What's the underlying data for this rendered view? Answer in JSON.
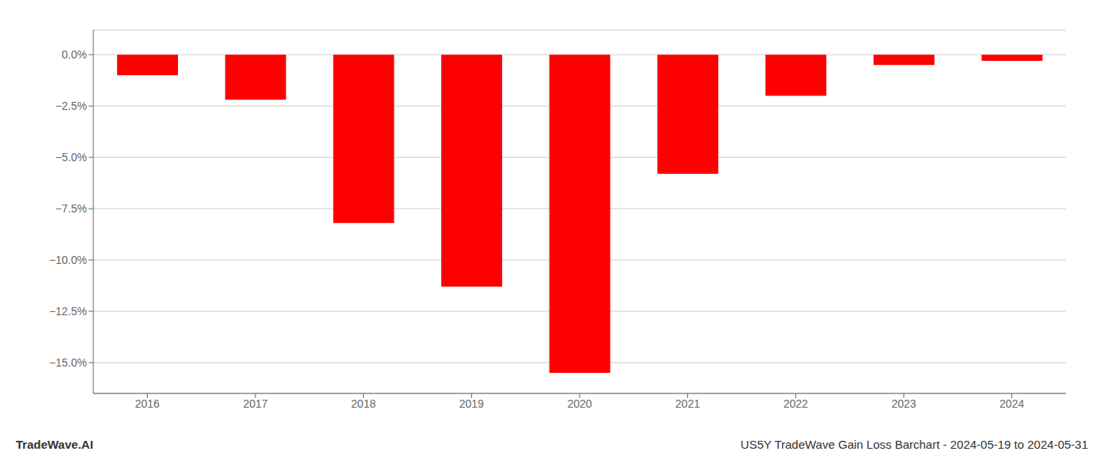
{
  "chart_data": {
    "type": "bar",
    "categories": [
      "2016",
      "2017",
      "2018",
      "2019",
      "2020",
      "2021",
      "2022",
      "2023",
      "2024"
    ],
    "values": [
      -1.0,
      -2.2,
      -8.2,
      -11.3,
      -15.5,
      -5.8,
      -2.0,
      -0.5,
      -0.3
    ],
    "color": "#ff0000",
    "ylim": [
      -16.5,
      1.2
    ],
    "yticks": [
      {
        "value": 0.0,
        "label": "0.0%"
      },
      {
        "value": -2.5,
        "label": "−2.5%"
      },
      {
        "value": -5.0,
        "label": "−5.0%"
      },
      {
        "value": -7.5,
        "label": "−7.5%"
      },
      {
        "value": -10.0,
        "label": "−10.0%"
      },
      {
        "value": -12.5,
        "label": "−12.5%"
      },
      {
        "value": -15.0,
        "label": "−15.0%"
      }
    ],
    "grid": true,
    "annotations": [
      "TradeWave.AI",
      "US5Y TradeWave Gain Loss Barchart - 2024-05-19 to 2024-05-31"
    ]
  }
}
